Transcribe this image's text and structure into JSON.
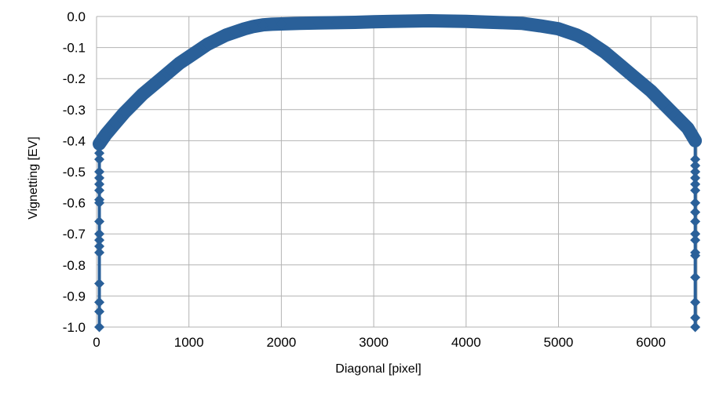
{
  "chart_data": {
    "type": "line",
    "title": "",
    "xlabel": "Diagonal [pixel]",
    "ylabel": "Vignetting [EV]",
    "xlim": [
      0,
      6500
    ],
    "ylim": [
      -1.0,
      0.0
    ],
    "x_ticks": [
      0,
      1000,
      2000,
      3000,
      4000,
      5000,
      6000
    ],
    "y_ticks": [
      0.0,
      -0.1,
      -0.2,
      -0.3,
      -0.4,
      -0.5,
      -0.6,
      -0.7,
      -0.8,
      -0.9,
      -1.0
    ],
    "x_tick_labels": [
      "0",
      "1000",
      "2000",
      "3000",
      "4000",
      "5000",
      "6000"
    ],
    "y_tick_labels": [
      "0.0",
      "-0.1",
      "-0.2",
      "-0.3",
      "-0.4",
      "-0.5",
      "-0.6",
      "-0.7",
      "-0.8",
      "-0.9",
      "-1.0"
    ],
    "grid": true,
    "legend": "none",
    "series_color": "#2a6099",
    "marker": "diamond",
    "series": [
      {
        "name": "",
        "x": [
          30,
          100,
          200,
          300,
          400,
          500,
          600,
          700,
          800,
          900,
          1000,
          1100,
          1200,
          1300,
          1400,
          1500,
          1600,
          1700,
          1800,
          1900,
          2000,
          2200,
          2400,
          2600,
          2800,
          3000,
          3200,
          3400,
          3600,
          3800,
          4000,
          4200,
          4400,
          4600,
          4800,
          5000,
          5100,
          5200,
          5300,
          5400,
          5500,
          5600,
          5700,
          5800,
          5900,
          6000,
          6100,
          6200,
          6300,
          6400,
          6480
        ],
        "y": [
          -0.41,
          -0.38,
          -0.345,
          -0.31,
          -0.28,
          -0.25,
          -0.225,
          -0.2,
          -0.175,
          -0.15,
          -0.13,
          -0.11,
          -0.09,
          -0.075,
          -0.06,
          -0.05,
          -0.04,
          -0.032,
          -0.027,
          -0.025,
          -0.024,
          -0.022,
          -0.021,
          -0.02,
          -0.019,
          -0.017,
          -0.016,
          -0.015,
          -0.014,
          -0.015,
          -0.016,
          -0.018,
          -0.02,
          -0.022,
          -0.03,
          -0.04,
          -0.05,
          -0.06,
          -0.075,
          -0.095,
          -0.115,
          -0.14,
          -0.165,
          -0.19,
          -0.215,
          -0.24,
          -0.27,
          -0.3,
          -0.33,
          -0.36,
          -0.4
        ]
      },
      {
        "name": "",
        "x": [
          30,
          30,
          30,
          30,
          30,
          30,
          30,
          30,
          30,
          30,
          30,
          30,
          30,
          30,
          30,
          30,
          30,
          30
        ],
        "y": [
          -0.41,
          -0.44,
          -0.46,
          -0.5,
          -0.52,
          -0.54,
          -0.56,
          -0.59,
          -0.6,
          -0.66,
          -0.7,
          -0.72,
          -0.74,
          -0.76,
          -0.86,
          -0.92,
          -0.95,
          -1.0
        ]
      },
      {
        "name": "",
        "x": [
          6480,
          6480,
          6480,
          6480,
          6480,
          6480,
          6480,
          6480,
          6480,
          6480,
          6480,
          6480,
          6480,
          6480,
          6480,
          6480,
          6480,
          6480
        ],
        "y": [
          -0.4,
          -0.46,
          -0.48,
          -0.5,
          -0.52,
          -0.54,
          -0.56,
          -0.6,
          -0.63,
          -0.66,
          -0.7,
          -0.72,
          -0.76,
          -0.77,
          -0.84,
          -0.92,
          -0.97,
          -1.0
        ]
      }
    ]
  }
}
